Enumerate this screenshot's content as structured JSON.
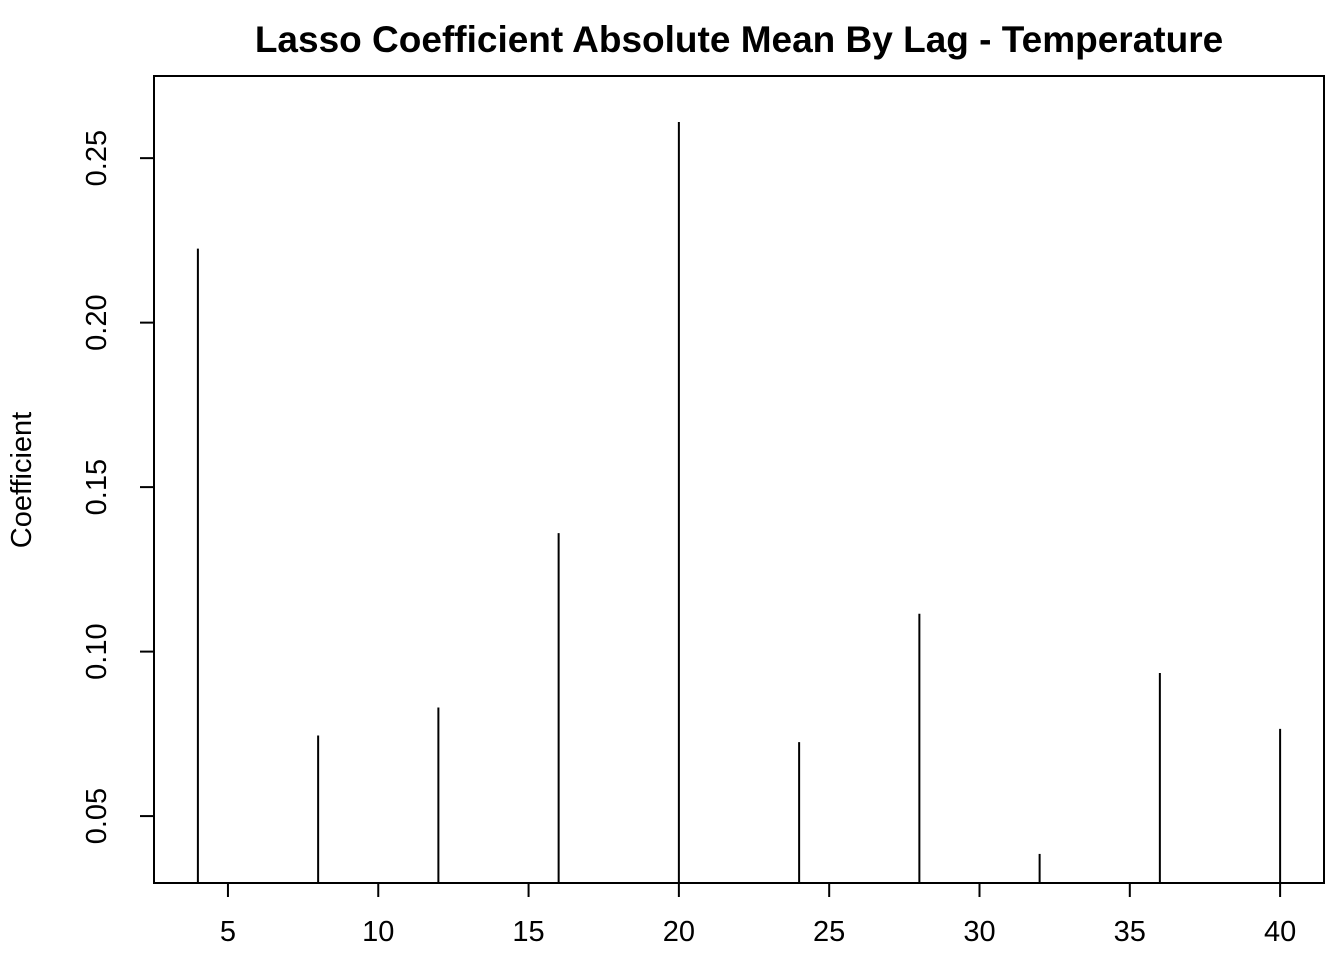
{
  "chart_data": {
    "type": "bar",
    "style": "vertical spikes (histogram-type lines)",
    "title": "Lasso Coefficient Absolute Mean By Lag - Temperature",
    "xlabel": "",
    "ylabel": "Coefficient",
    "x": [
      4,
      8,
      12,
      16,
      20,
      24,
      28,
      32,
      36,
      40
    ],
    "values": [
      0.2225,
      0.0745,
      0.083,
      0.136,
      0.261,
      0.0725,
      0.1115,
      0.0385,
      0.0935,
      0.0765
    ],
    "xlim": [
      2.54,
      41.46
    ],
    "ylim": [
      0.02966,
      0.27497
    ],
    "xticks": [
      5,
      10,
      15,
      20,
      25,
      30,
      35,
      40
    ],
    "xtick_labels": [
      "5",
      "10",
      "15",
      "20",
      "25",
      "30",
      "35",
      "40"
    ],
    "yticks": [
      0.05,
      0.1,
      0.15,
      0.2,
      0.25
    ],
    "ytick_labels": [
      "0.05",
      "0.10",
      "0.15",
      "0.20",
      "0.25"
    ],
    "grid": false,
    "legend": "none",
    "line_color": "#000000"
  }
}
